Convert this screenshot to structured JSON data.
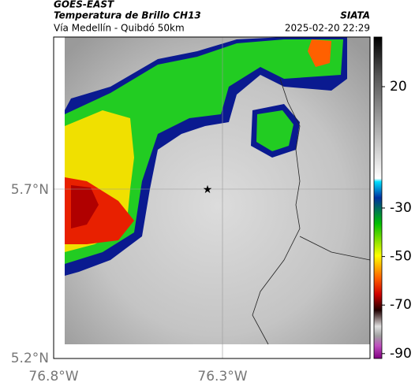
{
  "header": {
    "source": "GOES-EAST",
    "title": "Temperatura de Brillo CH13",
    "brand": "SIATA",
    "subtitle": "Vía Medellín - Quibdó 50km",
    "datetime": "2025-02-20 22:29"
  },
  "axes": {
    "lat_labels": [
      "5.7°N",
      "5.2°N"
    ],
    "lon_labels": [
      "76.8°W",
      "76.3°W"
    ]
  },
  "colorbar": {
    "ticks": [
      20,
      -30,
      -50,
      -70,
      -90
    ]
  }
}
